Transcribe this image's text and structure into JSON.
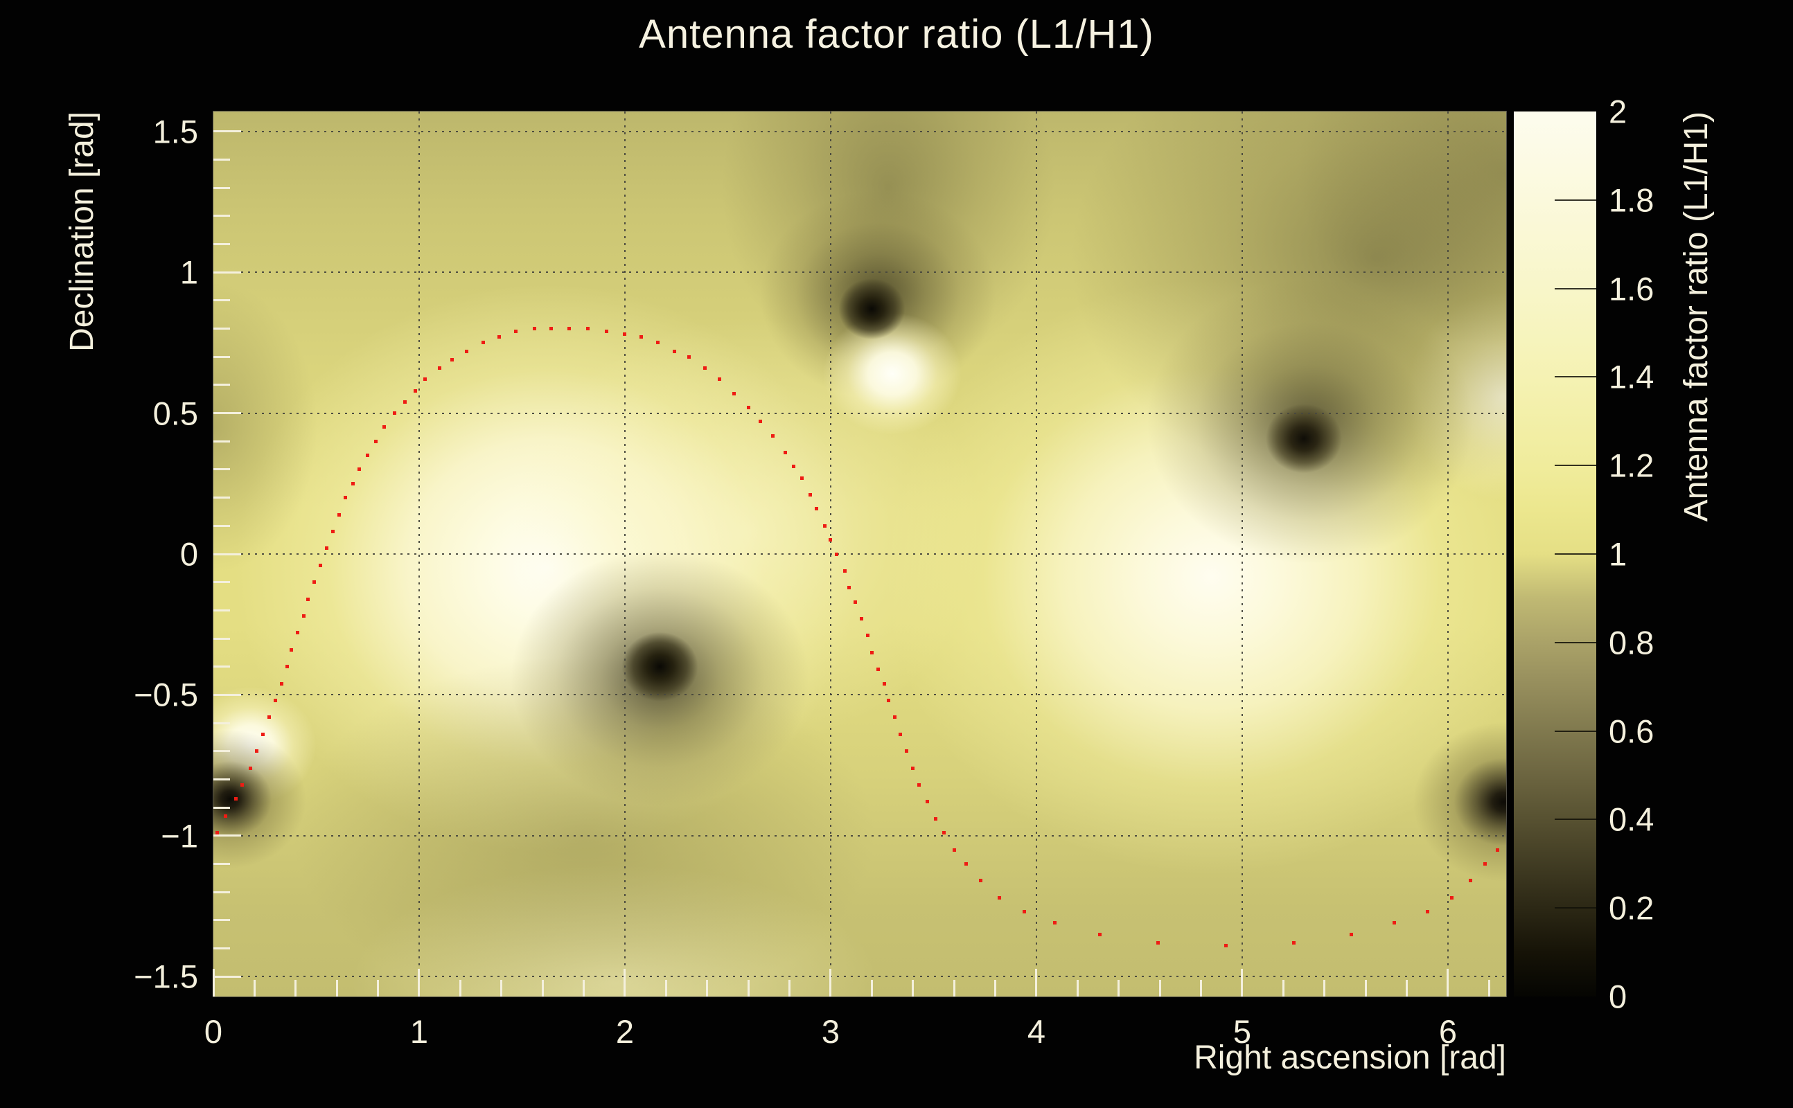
{
  "title": "Antenna factor ratio (L1/H1)",
  "axes": {
    "x": {
      "title": "Right ascension [rad]",
      "tick_labels": [
        {
          "v": 0,
          "t": "0"
        },
        {
          "v": 1,
          "t": "1"
        },
        {
          "v": 2,
          "t": "2"
        },
        {
          "v": 3,
          "t": "3"
        },
        {
          "v": 4,
          "t": "4"
        },
        {
          "v": 5,
          "t": "5"
        },
        {
          "v": 6,
          "t": "6"
        }
      ],
      "gridline_values": [
        1,
        2,
        3,
        4,
        5,
        6
      ],
      "minor_tick_step": 0.2
    },
    "y": {
      "title": "Declination [rad]",
      "tick_labels": [
        {
          "v": -1.5,
          "t": "−1.5"
        },
        {
          "v": -1,
          "t": "−1"
        },
        {
          "v": -0.5,
          "t": "−0.5"
        },
        {
          "v": 0,
          "t": "0"
        },
        {
          "v": 0.5,
          "t": "0.5"
        },
        {
          "v": 1,
          "t": "1"
        },
        {
          "v": 1.5,
          "t": "1.5"
        }
      ],
      "gridline_values": [
        -1.5,
        -1,
        -0.5,
        0,
        0.5,
        1,
        1.5
      ],
      "minor_tick_step": 0.1
    }
  },
  "colorbar": {
    "title": "Antenna factor ratio (L1/H1)",
    "tick_labels": [
      {
        "v": 0,
        "t": "0"
      },
      {
        "v": 0.2,
        "t": "0.2"
      },
      {
        "v": 0.4,
        "t": "0.4"
      },
      {
        "v": 0.6,
        "t": "0.6"
      },
      {
        "v": 0.8,
        "t": "0.8"
      },
      {
        "v": 1,
        "t": "1"
      },
      {
        "v": 1.2,
        "t": "1.2"
      },
      {
        "v": 1.4,
        "t": "1.4"
      },
      {
        "v": 1.6,
        "t": "1.6"
      },
      {
        "v": 1.8,
        "t": "1.8"
      },
      {
        "v": 2,
        "t": "2"
      }
    ],
    "inner_tick_values": [
      0.2,
      0.4,
      0.6,
      0.8,
      1,
      1.2,
      1.4,
      1.6,
      1.8
    ]
  },
  "colors": {
    "background": "#020202",
    "foreground_text": "#f4f0dd",
    "track_marker": "#ee1c14",
    "gridline": "#484840"
  },
  "chart_data": {
    "type": "heatmap",
    "title": "Antenna factor ratio (L1/H1)",
    "xlabel": "Right ascension [rad]",
    "ylabel": "Declination [rad]",
    "zlabel": "Antenna factor ratio (L1/H1)",
    "xlim": [
      0,
      6.2832
    ],
    "ylim": [
      -1.5708,
      1.5708
    ],
    "zlim": [
      0,
      2
    ],
    "grid": true,
    "colormap": [
      {
        "value": 0.0,
        "color": "#050502"
      },
      {
        "value": 0.1,
        "color": "#161307"
      },
      {
        "value": 0.2,
        "color": "#2c2815"
      },
      {
        "value": 0.3,
        "color": "#413c23"
      },
      {
        "value": 0.4,
        "color": "#575131"
      },
      {
        "value": 0.5,
        "color": "#6c6540"
      },
      {
        "value": 0.6,
        "color": "#80794e"
      },
      {
        "value": 0.7,
        "color": "#958d5c"
      },
      {
        "value": 0.8,
        "color": "#aaa268"
      },
      {
        "value": 0.9,
        "color": "#c0b973"
      },
      {
        "value": 1.0,
        "color": "#e5df85"
      },
      {
        "value": 1.1,
        "color": "#ece78e"
      },
      {
        "value": 1.2,
        "color": "#f0ec9c"
      },
      {
        "value": 1.4,
        "color": "#f5f2b3"
      },
      {
        "value": 1.6,
        "color": "#f8f6c9"
      },
      {
        "value": 1.8,
        "color": "#fbf9dc"
      },
      {
        "value": 2.0,
        "color": "#fdfcee"
      }
    ],
    "features": {
      "background_value": 0.95,
      "maxima": [
        {
          "ra": 1.62,
          "dec": -0.05,
          "value": 2.0
        },
        {
          "ra": 4.85,
          "dec": -0.08,
          "value": 2.0
        },
        {
          "ra": 3.3,
          "dec": 0.64,
          "value": 1.9
        },
        {
          "ra": 0.18,
          "dec": -0.68,
          "value": 1.8
        },
        {
          "ra": 6.27,
          "dec": 0.56,
          "value": 1.5
        }
      ],
      "minima": [
        {
          "ra": 2.17,
          "dec": -0.4,
          "value": 0.0
        },
        {
          "ra": 3.2,
          "dec": 0.87,
          "value": 0.0
        },
        {
          "ra": 5.3,
          "dec": 0.41,
          "value": 0.0
        },
        {
          "ra": 0.08,
          "dec": -0.87,
          "value": 0.0
        },
        {
          "ra": 6.27,
          "dec": -0.88,
          "value": 0.0
        }
      ]
    },
    "heat_layers": [
      {
        "x": 0.08,
        "y": -0.87,
        "rx": 110,
        "ry": 100,
        "stops": [
          [
            0,
            "#0d0b06"
          ],
          [
            12,
            "#211d10"
          ],
          [
            30,
            "rgba(75,69,40,0.85)"
          ],
          [
            55,
            "rgba(125,117,66,0.45)"
          ],
          [
            100,
            "rgba(140,132,74,0)"
          ]
        ]
      },
      {
        "x": 6.27,
        "y": -0.88,
        "rx": 130,
        "ry": 115,
        "stops": [
          [
            0,
            "#0d0b06"
          ],
          [
            12,
            "#211d10"
          ],
          [
            30,
            "rgba(75,69,40,0.85)"
          ],
          [
            55,
            "rgba(125,117,66,0.45)"
          ],
          [
            100,
            "rgba(140,132,74,0)"
          ]
        ]
      },
      {
        "x": 2.17,
        "y": -0.4,
        "rx": 55,
        "ry": 50,
        "stops": [
          [
            0,
            "#0a0905"
          ],
          [
            35,
            "#25210f"
          ],
          [
            70,
            "rgba(60,55,30,0.75)"
          ],
          [
            100,
            "rgba(70,65,36,0)"
          ]
        ]
      },
      {
        "x": 3.2,
        "y": 0.87,
        "rx": 48,
        "ry": 44,
        "stops": [
          [
            0,
            "#0a0905"
          ],
          [
            35,
            "#25210f"
          ],
          [
            70,
            "rgba(60,55,30,0.75)"
          ],
          [
            100,
            "rgba(70,65,36,0)"
          ]
        ]
      },
      {
        "x": 5.3,
        "y": 0.41,
        "rx": 55,
        "ry": 50,
        "stops": [
          [
            0,
            "#0f0d07"
          ],
          [
            35,
            "#2a2513"
          ],
          [
            70,
            "rgba(70,64,36,0.7)"
          ],
          [
            100,
            "rgba(80,74,42,0)"
          ]
        ]
      },
      {
        "x": 3.3,
        "y": 0.64,
        "rx": 100,
        "ry": 88,
        "stops": [
          [
            0,
            "#fffff8"
          ],
          [
            35,
            "rgba(253,251,226,0.95)"
          ],
          [
            65,
            "rgba(249,244,190,0.55)"
          ],
          [
            100,
            "rgba(249,244,190,0)"
          ]
        ]
      },
      {
        "x": 0.18,
        "y": -0.68,
        "rx": 95,
        "ry": 85,
        "stops": [
          [
            0,
            "#fffff8"
          ],
          [
            35,
            "rgba(253,251,226,0.95)"
          ],
          [
            65,
            "rgba(249,244,190,0.55)"
          ],
          [
            100,
            "rgba(249,244,190,0)"
          ]
        ]
      },
      {
        "x": 2.17,
        "y": -0.44,
        "rx": 215,
        "ry": 185,
        "stops": [
          [
            0,
            "rgba(50,46,26,0.8)"
          ],
          [
            40,
            "rgba(95,89,50,0.5)"
          ],
          [
            70,
            "rgba(130,122,68,0.26)"
          ],
          [
            100,
            "rgba(140,132,74,0)"
          ]
        ]
      },
      {
        "x": 3.23,
        "y": 0.92,
        "rx": 170,
        "ry": 150,
        "stops": [
          [
            0,
            "rgba(50,46,26,0.75)"
          ],
          [
            40,
            "rgba(95,89,50,0.5)"
          ],
          [
            70,
            "rgba(130,122,68,0.25)"
          ],
          [
            100,
            "rgba(140,132,74,0)"
          ]
        ]
      },
      {
        "x": 5.33,
        "y": 0.47,
        "rx": 235,
        "ry": 205,
        "stops": [
          [
            0,
            "rgba(50,46,26,0.7)"
          ],
          [
            40,
            "rgba(95,89,50,0.45)"
          ],
          [
            70,
            "rgba(130,122,68,0.22)"
          ],
          [
            100,
            "rgba(140,132,74,0)"
          ]
        ]
      },
      {
        "x": 3.28,
        "y": 1.3,
        "rx": 240,
        "ry": 280,
        "stops": [
          [
            0,
            "rgba(100,94,54,0.5)"
          ],
          [
            55,
            "rgba(125,117,66,0.25)"
          ],
          [
            100,
            "rgba(140,132,74,0)"
          ]
        ]
      },
      {
        "x": 5.65,
        "y": 1.05,
        "rx": 440,
        "ry": 340,
        "stops": [
          [
            0,
            "rgba(95,89,52,0.55)"
          ],
          [
            50,
            "rgba(120,112,64,0.3)"
          ],
          [
            100,
            "rgba(140,132,74,0)"
          ]
        ]
      },
      {
        "x": 6.28,
        "y": 1.35,
        "rx": 300,
        "ry": 250,
        "stops": [
          [
            0,
            "rgba(95,89,52,0.4)"
          ],
          [
            60,
            "rgba(120,112,64,0.2)"
          ],
          [
            100,
            "rgba(140,132,74,0)"
          ]
        ]
      },
      {
        "x": 1.8,
        "y": -1.0,
        "rx": 420,
        "ry": 260,
        "stops": [
          [
            0,
            "rgba(125,118,66,0.35)"
          ],
          [
            60,
            "rgba(140,132,74,0.18)"
          ],
          [
            100,
            "rgba(150,142,80,0)"
          ]
        ]
      },
      {
        "x": 0.0,
        "y": 0.45,
        "rx": 150,
        "ry": 210,
        "stops": [
          [
            0,
            "rgba(120,113,63,0.4)"
          ],
          [
            100,
            "rgba(130,123,68,0)"
          ]
        ]
      },
      {
        "x": 6.27,
        "y": 0.56,
        "rx": 140,
        "ry": 150,
        "stops": [
          [
            0,
            "rgba(253,250,222,0.95)"
          ],
          [
            55,
            "rgba(250,245,195,0.45)"
          ],
          [
            100,
            "rgba(250,245,195,0)"
          ]
        ]
      },
      {
        "x": 2.6,
        "y": 0.08,
        "rx": 340,
        "ry": 310,
        "stops": [
          [
            0,
            "rgba(251,247,205,0.6)"
          ],
          [
            60,
            "rgba(248,243,185,0.25)"
          ],
          [
            100,
            "rgba(248,243,185,0)"
          ]
        ]
      },
      {
        "x": 1.62,
        "y": -0.05,
        "rx": 450,
        "ry": 410,
        "stops": [
          [
            0,
            "#fffef5"
          ],
          [
            22,
            "#fdfbe0"
          ],
          [
            45,
            "rgba(251,247,208,0.9)"
          ],
          [
            70,
            "rgba(245,240,170,0.5)"
          ],
          [
            100,
            "rgba(240,234,150,0)"
          ]
        ]
      },
      {
        "x": 4.85,
        "y": -0.08,
        "rx": 470,
        "ry": 430,
        "stops": [
          [
            0,
            "#fffdf0"
          ],
          [
            22,
            "#fcf9da"
          ],
          [
            45,
            "rgba(250,246,200,0.85)"
          ],
          [
            70,
            "rgba(243,238,160,0.45)"
          ],
          [
            100,
            "rgba(240,234,150,0)"
          ]
        ]
      },
      {
        "x": 1.95,
        "y": -1.52,
        "rx": 380,
        "ry": 170,
        "stops": [
          [
            0,
            "rgba(249,245,195,0.55)"
          ],
          [
            100,
            "rgba(249,245,195,0)"
          ]
        ]
      },
      {
        "type": "base",
        "stops": [
          [
            0,
            "#bdb76c"
          ],
          [
            12,
            "#ccc674"
          ],
          [
            28,
            "#d9d37c"
          ],
          [
            45,
            "#e4de83"
          ],
          [
            58,
            "#e4de83"
          ],
          [
            75,
            "#d7d17b"
          ],
          [
            90,
            "#c7c172"
          ],
          [
            100,
            "#c3bd70"
          ]
        ]
      }
    ],
    "track": {
      "name": "source-sky-track",
      "marker": "red-square-dot",
      "points": [
        [
          0.02,
          -0.99
        ],
        [
          0.06,
          -0.93
        ],
        [
          0.11,
          -0.87
        ],
        [
          0.14,
          -0.82
        ],
        [
          0.18,
          -0.76
        ],
        [
          0.21,
          -0.7
        ],
        [
          0.24,
          -0.64
        ],
        [
          0.27,
          -0.58
        ],
        [
          0.3,
          -0.52
        ],
        [
          0.33,
          -0.46
        ],
        [
          0.36,
          -0.4
        ],
        [
          0.38,
          -0.34
        ],
        [
          0.41,
          -0.28
        ],
        [
          0.44,
          -0.22
        ],
        [
          0.46,
          -0.16
        ],
        [
          0.49,
          -0.1
        ],
        [
          0.52,
          -0.04
        ],
        [
          0.55,
          0.02
        ],
        [
          0.58,
          0.08
        ],
        [
          0.61,
          0.14
        ],
        [
          0.64,
          0.2
        ],
        [
          0.68,
          0.25
        ],
        [
          0.71,
          0.3
        ],
        [
          0.75,
          0.35
        ],
        [
          0.79,
          0.4
        ],
        [
          0.83,
          0.45
        ],
        [
          0.88,
          0.5
        ],
        [
          0.93,
          0.54
        ],
        [
          0.98,
          0.58
        ],
        [
          1.03,
          0.62
        ],
        [
          1.1,
          0.66
        ],
        [
          1.16,
          0.69
        ],
        [
          1.23,
          0.72
        ],
        [
          1.31,
          0.75
        ],
        [
          1.39,
          0.77
        ],
        [
          1.47,
          0.79
        ],
        [
          1.56,
          0.8
        ],
        [
          1.64,
          0.8
        ],
        [
          1.73,
          0.8
        ],
        [
          1.82,
          0.8
        ],
        [
          1.91,
          0.79
        ],
        [
          2.0,
          0.78
        ],
        [
          2.08,
          0.77
        ],
        [
          2.16,
          0.75
        ],
        [
          2.24,
          0.72
        ],
        [
          2.31,
          0.7
        ],
        [
          2.39,
          0.66
        ],
        [
          2.46,
          0.62
        ],
        [
          2.53,
          0.57
        ],
        [
          2.6,
          0.52
        ],
        [
          2.66,
          0.47
        ],
        [
          2.72,
          0.42
        ],
        [
          2.78,
          0.36
        ],
        [
          2.82,
          0.31
        ],
        [
          2.86,
          0.27
        ],
        [
          2.9,
          0.21
        ],
        [
          2.93,
          0.16
        ],
        [
          2.97,
          0.1
        ],
        [
          3.0,
          0.05
        ],
        [
          3.03,
          0.0
        ],
        [
          3.07,
          -0.06
        ],
        [
          3.09,
          -0.12
        ],
        [
          3.12,
          -0.17
        ],
        [
          3.15,
          -0.23
        ],
        [
          3.18,
          -0.29
        ],
        [
          3.2,
          -0.35
        ],
        [
          3.23,
          -0.41
        ],
        [
          3.26,
          -0.46
        ],
        [
          3.28,
          -0.52
        ],
        [
          3.31,
          -0.58
        ],
        [
          3.34,
          -0.64
        ],
        [
          3.37,
          -0.7
        ],
        [
          3.4,
          -0.76
        ],
        [
          3.43,
          -0.82
        ],
        [
          3.47,
          -0.88
        ],
        [
          3.51,
          -0.94
        ],
        [
          3.55,
          -0.99
        ],
        [
          3.6,
          -1.05
        ],
        [
          3.66,
          -1.1
        ],
        [
          3.73,
          -1.16
        ],
        [
          3.82,
          -1.22
        ],
        [
          3.94,
          -1.27
        ],
        [
          4.09,
          -1.31
        ],
        [
          4.31,
          -1.35
        ],
        [
          4.59,
          -1.38
        ],
        [
          4.92,
          -1.39
        ],
        [
          5.25,
          -1.38
        ],
        [
          5.53,
          -1.35
        ],
        [
          5.74,
          -1.31
        ],
        [
          5.9,
          -1.27
        ],
        [
          6.02,
          -1.22
        ],
        [
          6.11,
          -1.16
        ],
        [
          6.18,
          -1.1
        ],
        [
          6.24,
          -1.05
        ]
      ]
    }
  }
}
